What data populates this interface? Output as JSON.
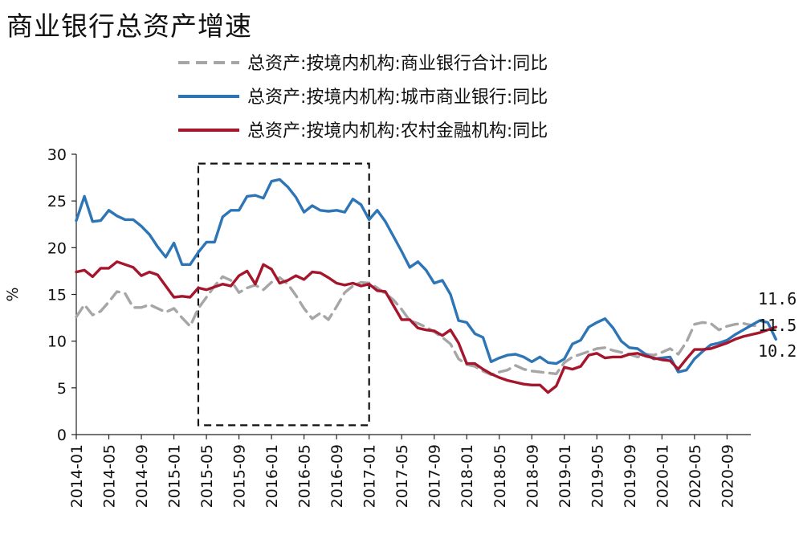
{
  "chart_data": {
    "type": "line",
    "title": "商业银行总资产增速",
    "ylabel": "%",
    "xlabel": "",
    "ylim": [
      0,
      30
    ],
    "yticks": [
      0,
      5,
      10,
      15,
      20,
      25,
      30
    ],
    "x_start": "2014-01",
    "x_tick_labels": [
      "2014-01",
      "2014-05",
      "2014-09",
      "2015-01",
      "2015-05",
      "2015-09",
      "2016-01",
      "2016-05",
      "2016-09",
      "2017-01",
      "2017-05",
      "2017-09",
      "2018-01",
      "2018-05",
      "2018-09",
      "2019-01",
      "2019-05",
      "2019-09",
      "2020-01",
      "2020-05",
      "2020-09"
    ],
    "grid": false,
    "legend_position": "top",
    "highlight_box": {
      "x_from": "2015-04",
      "x_to": "2017-01",
      "y_from": 1,
      "y_to": 29
    },
    "end_labels": [
      "11.6",
      "11.5",
      "10.2"
    ],
    "series": [
      {
        "name": "总资产:按境内机构:商业银行合计:同比",
        "color": "#a6a6a6",
        "style": "dashed",
        "values": [
          12.6,
          13.9,
          12.8,
          13.2,
          14.2,
          15.3,
          15.1,
          13.6,
          13.6,
          13.9,
          13.5,
          13.1,
          13.5,
          12.5,
          11.6,
          13.5,
          14.7,
          15.9,
          16.9,
          16.5,
          15.2,
          15.7,
          16.0,
          15.5,
          16.3,
          16.8,
          16.1,
          14.9,
          13.5,
          12.4,
          13.0,
          12.3,
          13.7,
          15.2,
          15.9,
          16.3,
          16.2,
          15.7,
          15.1,
          14.4,
          13.4,
          12.2,
          11.9,
          11.5,
          11.0,
          10.4,
          9.7,
          8.1,
          7.5,
          7.3,
          6.8,
          6.4,
          6.7,
          6.9,
          7.4,
          7.0,
          6.8,
          6.7,
          6.6,
          6.5,
          7.7,
          8.3,
          8.6,
          8.9,
          9.2,
          9.3,
          9.0,
          8.8,
          8.6,
          8.3,
          8.6,
          8.5,
          8.8,
          9.2,
          8.6,
          9.9,
          11.8,
          12.0,
          11.9,
          11.2,
          11.6,
          11.8,
          11.9,
          11.7,
          11.6
        ]
      },
      {
        "name": "总资产:按境内机构:城市商业银行:同比",
        "color": "#2e75b6",
        "style": "solid",
        "values": [
          22.9,
          25.5,
          22.8,
          22.9,
          24.0,
          23.4,
          23.0,
          23.0,
          22.3,
          21.4,
          20.1,
          19.0,
          20.5,
          18.2,
          18.2,
          19.5,
          20.6,
          20.6,
          23.3,
          24.0,
          24.0,
          25.5,
          25.6,
          25.3,
          27.1,
          27.3,
          26.5,
          25.4,
          23.8,
          24.5,
          24.0,
          23.9,
          24.0,
          23.8,
          25.2,
          24.6,
          23.0,
          24.0,
          22.8,
          21.2,
          19.6,
          17.9,
          18.5,
          17.6,
          16.2,
          16.5,
          15.0,
          12.2,
          12.0,
          10.8,
          10.4,
          7.8,
          8.2,
          8.5,
          8.6,
          8.3,
          7.8,
          8.3,
          7.7,
          7.6,
          8.1,
          9.7,
          10.1,
          11.5,
          12.0,
          12.4,
          11.4,
          10.0,
          9.3,
          9.2,
          8.6,
          8.1,
          8.2,
          8.3,
          6.7,
          6.9,
          8.1,
          8.9,
          9.6,
          9.8,
          10.1,
          10.7,
          11.2,
          11.7,
          12.2,
          12.0,
          10.2
        ]
      },
      {
        "name": "总资产:按境内机构:农村金融机构:同比",
        "color": "#a5152c",
        "style": "solid",
        "values": [
          17.4,
          17.6,
          16.9,
          17.8,
          17.8,
          18.5,
          18.2,
          17.9,
          17.0,
          17.4,
          17.1,
          15.9,
          14.7,
          14.8,
          14.7,
          15.7,
          15.5,
          15.8,
          16.1,
          15.9,
          17.0,
          17.5,
          16.1,
          18.2,
          17.7,
          16.2,
          16.5,
          17.0,
          16.6,
          17.4,
          17.3,
          16.8,
          16.2,
          16.0,
          16.2,
          15.9,
          16.1,
          15.4,
          15.3,
          13.8,
          12.3,
          12.3,
          11.4,
          11.2,
          11.1,
          10.6,
          11.2,
          9.8,
          7.6,
          7.6,
          7.0,
          6.5,
          6.1,
          5.8,
          5.6,
          5.4,
          5.3,
          5.3,
          4.5,
          5.2,
          7.2,
          7.0,
          7.3,
          8.5,
          8.7,
          8.2,
          8.3,
          8.3,
          8.6,
          8.7,
          8.4,
          8.2,
          8.0,
          7.9,
          7.0,
          8.1,
          9.1,
          9.1,
          9.2,
          9.5,
          9.8,
          10.2,
          10.5,
          10.7,
          10.9,
          11.2,
          11.5
        ]
      }
    ]
  }
}
